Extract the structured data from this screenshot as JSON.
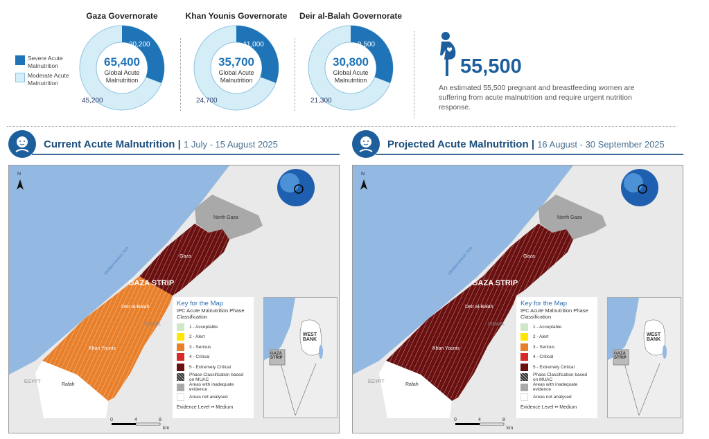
{
  "legend": {
    "severe": "Severe Acute Malnutrition",
    "moderate": "Moderate Acute Malnutrition"
  },
  "colors": {
    "severe": "#1f73b7",
    "moderate": "#d5edf7",
    "accent": "#1d5e9c",
    "phase1": "#cfe8c8",
    "phase2": "#ffe600",
    "phase3": "#e87f2a",
    "phase4": "#d42a2a",
    "phase5": "#6b1010",
    "inadequate": "#a9a9a9",
    "sea": "#93b8e2"
  },
  "governorates": [
    {
      "title": "Gaza Governorate",
      "total": "65,400",
      "total_label": "Global Acute Malnutrition",
      "severe": 20200,
      "moderate": 45200,
      "severe_label": "20,200",
      "moderate_label": "45,200"
    },
    {
      "title": "Khan Younis Governorate",
      "total": "35,700",
      "total_label": "Global Acute Malnutrition",
      "severe": 11000,
      "moderate": 24700,
      "severe_label": "11,000",
      "moderate_label": "24,700"
    },
    {
      "title": "Deir al-Balah Governorate",
      "total": "30,800",
      "total_label": "Global Acute Malnutrition",
      "severe": 9500,
      "moderate": 21300,
      "severe_label": "9,500",
      "moderate_label": "21,300"
    }
  ],
  "plw": {
    "number": "55,500",
    "text": "An estimated 55,500 pregnant and breastfeeding women are suffering from acute malnutrition and require urgent nutrition response."
  },
  "sections": [
    {
      "title": "Current Acute Malnutrition",
      "sep": "|",
      "dates": "1 July - 15 August 2025"
    },
    {
      "title": "Projected Acute Malnutrition",
      "sep": "|",
      "dates": "16 August  - 30 September 2025"
    }
  ],
  "map": {
    "north": "N",
    "labels": {
      "north_gaza": "North Gaza",
      "gaza": "Gaza",
      "strip": "GAZA STRIP",
      "deir": "Deir al-Balah",
      "israel": "ISRAEL",
      "khan": "Khan Younis",
      "egypt": "EGYPT",
      "rafah": "Rafah",
      "sea": "Mediterranean Sea"
    },
    "scale": [
      "0",
      "4",
      "8"
    ],
    "scale_unit": "km",
    "key": {
      "title": "Key for the Map",
      "subtitle": "IPC Acute Malnutrition Phase Classification",
      "items": [
        "1 - Acceptable",
        "2 - Alert",
        "3 - Serious",
        "4 - Critical",
        "5 - Extremely Critical",
        "Phase Classification based on MUAC",
        "Areas with inadequate evidence",
        "Areas not analysed"
      ],
      "evidence": "Evidence Level •• Medium"
    },
    "inset": {
      "west_bank": "WEST BANK",
      "gaza_strip": "GAZA STRIP"
    },
    "current_phases": {
      "gaza": 5,
      "south": 3
    },
    "projected_phases": {
      "gaza": 5,
      "south": 5
    }
  }
}
